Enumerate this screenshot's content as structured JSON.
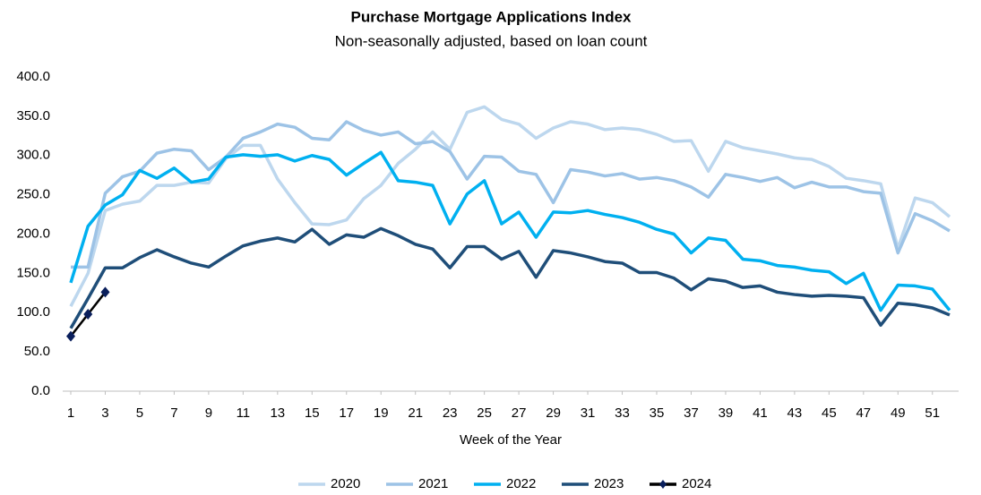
{
  "chart_data": {
    "type": "line",
    "title": "Purchase Mortgage Applications Index",
    "subtitle": "Non-seasonally adjusted, based on loan count",
    "x_label": "Week of the Year",
    "x": [
      1,
      2,
      3,
      4,
      5,
      6,
      7,
      8,
      9,
      10,
      11,
      12,
      13,
      14,
      15,
      16,
      17,
      18,
      19,
      20,
      21,
      22,
      23,
      24,
      25,
      26,
      27,
      28,
      29,
      30,
      31,
      32,
      33,
      34,
      35,
      36,
      37,
      38,
      39,
      40,
      41,
      42,
      43,
      44,
      45,
      46,
      47,
      48,
      49,
      50,
      51,
      52
    ],
    "xlim": [
      1,
      52
    ],
    "xticks": [
      1,
      3,
      5,
      7,
      9,
      11,
      13,
      15,
      17,
      19,
      21,
      23,
      25,
      27,
      29,
      31,
      33,
      35,
      37,
      39,
      41,
      43,
      45,
      47,
      49,
      51
    ],
    "ylim": [
      0,
      400
    ],
    "yticks": [
      {
        "value": 0,
        "label": "0.0"
      },
      {
        "value": 50,
        "label": "50.0"
      },
      {
        "value": 100,
        "label": "100.0"
      },
      {
        "value": 150,
        "label": "150.0"
      },
      {
        "value": 200,
        "label": "200.0"
      },
      {
        "value": 250,
        "label": "250.0"
      },
      {
        "value": 300,
        "label": "300.0"
      },
      {
        "value": 350,
        "label": "350.0"
      },
      {
        "value": 400,
        "label": "400.0"
      }
    ],
    "grid": false,
    "legend": "bottom",
    "series": [
      {
        "name": "2020",
        "color": "#bdd7ee",
        "values": [
          108,
          150,
          230,
          238,
          242,
          262,
          262,
          266,
          265,
          296,
          313,
          313,
          270,
          240,
          213,
          212,
          218,
          245,
          262,
          290,
          308,
          330,
          308,
          355,
          362,
          346,
          340,
          322,
          335,
          343,
          340,
          333,
          335,
          333,
          327,
          318,
          319,
          280,
          318,
          310,
          306,
          302,
          297,
          295,
          286,
          271,
          268,
          264,
          182,
          246,
          240,
          222
        ]
      },
      {
        "name": "2021",
        "color": "#9dc3e6",
        "values": [
          158,
          158,
          252,
          273,
          280,
          303,
          308,
          306,
          282,
          298,
          322,
          330,
          340,
          336,
          322,
          320,
          343,
          332,
          326,
          330,
          315,
          318,
          305,
          270,
          299,
          298,
          280,
          276,
          240,
          282,
          279,
          274,
          277,
          270,
          272,
          268,
          260,
          247,
          276,
          272,
          267,
          272,
          259,
          266,
          260,
          260,
          254,
          252,
          176,
          226,
          217,
          204
        ]
      },
      {
        "name": "2022",
        "color": "#00b0f0",
        "values": [
          138,
          210,
          237,
          250,
          281,
          271,
          284,
          266,
          270,
          298,
          301,
          299,
          301,
          293,
          300,
          295,
          275,
          290,
          304,
          268,
          266,
          262,
          213,
          251,
          268,
          213,
          228,
          196,
          228,
          227,
          230,
          225,
          221,
          215,
          206,
          200,
          176,
          195,
          192,
          168,
          166,
          160,
          158,
          154,
          152,
          137,
          150,
          103,
          135,
          134,
          130,
          103
        ]
      },
      {
        "name": "2023",
        "color": "#1f4e79",
        "values": [
          80,
          118,
          157,
          157,
          170,
          180,
          171,
          163,
          158,
          172,
          185,
          191,
          195,
          190,
          206,
          187,
          199,
          196,
          207,
          198,
          187,
          181,
          157,
          184,
          184,
          168,
          178,
          145,
          179,
          176,
          171,
          165,
          163,
          151,
          151,
          144,
          129,
          143,
          140,
          132,
          134,
          126,
          123,
          121,
          122,
          121,
          119,
          84,
          112,
          110,
          106,
          97
        ]
      },
      {
        "name": "2024",
        "color": "#0a1f5c",
        "line_color": "#000000",
        "marker": "diamond",
        "values": [
          70,
          98,
          126,
          null,
          null,
          null,
          null,
          null,
          null,
          null,
          null,
          null,
          null,
          null,
          null,
          null,
          null,
          null,
          null,
          null,
          null,
          null,
          null,
          null,
          null,
          null,
          null,
          null,
          null,
          null,
          null,
          null,
          null,
          null,
          null,
          null,
          null,
          null,
          null,
          null,
          null,
          null,
          null,
          null,
          null,
          null,
          null,
          null,
          null,
          null,
          null,
          null
        ]
      }
    ]
  }
}
